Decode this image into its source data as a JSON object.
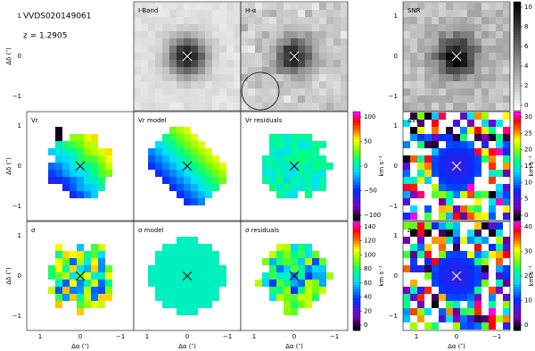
{
  "header": {
    "object": "VVDS020149061",
    "redshift": "z = 1.2905"
  },
  "panels": {
    "i_band": "I-Band",
    "h_alpha": "H-α",
    "snr": "SNR",
    "vr": "Vr",
    "vr_model": "Vr model",
    "vr_residuals": "Vr residuals",
    "delta_vr": "ΔVr",
    "sigma": "σ",
    "sigma_model": "σ model",
    "sigma_residuals": "σ residuals",
    "delta_sigma": "Δσ"
  },
  "axes": {
    "y_label": "Δδ (″)",
    "x_label": "Δα (″)",
    "ticks": [
      "1",
      "0",
      "−1"
    ]
  },
  "colorbars": {
    "vr": {
      "label": "km s⁻¹",
      "ticks": [
        "100",
        "50",
        "0",
        "−50",
        "−100"
      ]
    },
    "sigma": {
      "label": "km s⁻¹",
      "ticks": [
        "140",
        "120",
        "100",
        "80",
        "60",
        "40",
        "20",
        "0"
      ]
    },
    "snr": {
      "ticks": [
        "10",
        "8",
        "6",
        "4",
        "2",
        "0"
      ]
    },
    "delta_vr": {
      "label": "km s⁻¹",
      "ticks": [
        "30",
        "25",
        "20",
        "15",
        "10",
        "5",
        "0"
      ]
    },
    "delta_sigma": {
      "label": "km s⁻¹",
      "ticks": [
        "40",
        "30",
        "20",
        "10",
        "0"
      ]
    }
  }
}
